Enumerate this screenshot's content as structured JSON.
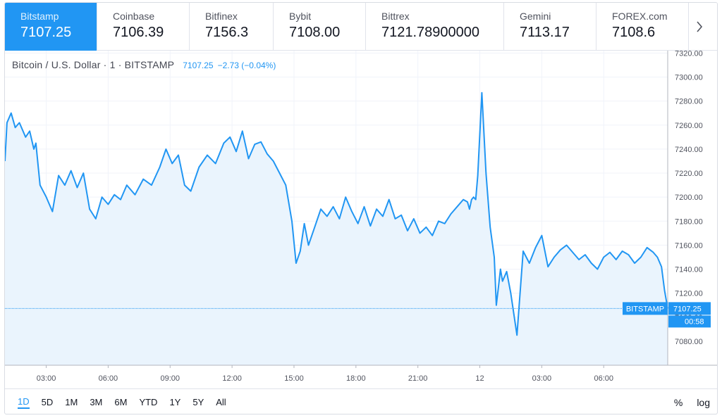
{
  "tabs": [
    {
      "name": "Bitstamp",
      "price": "7107.25",
      "active": true
    },
    {
      "name": "Coinbase",
      "price": "7106.39"
    },
    {
      "name": "Bitfinex",
      "price": "7156.3"
    },
    {
      "name": "Bybit",
      "price": "7108.00"
    },
    {
      "name": "Bittrex",
      "price": "7121.78900000"
    },
    {
      "name": "Gemini",
      "price": "7113.17"
    },
    {
      "name": "FOREX.com",
      "price": "7108.6"
    }
  ],
  "tab_next_icon": "chevron-right-icon",
  "legend": {
    "symbol": "Bitcoin / U.S. Dollar · 1 · BITSTAMP",
    "value": "7107.25",
    "change": "−2.73 (−0.04%)"
  },
  "colors": {
    "line": "#2196f3",
    "area": "#eaf4fd",
    "grid": "#f0f3fa",
    "accent": "#2196f3"
  },
  "chart_data": {
    "type": "area",
    "title": "",
    "xlabel": "",
    "ylabel": "",
    "x_ticks": [
      "03:00",
      "06:00",
      "09:00",
      "12:00",
      "15:00",
      "18:00",
      "21:00",
      "12",
      "03:00",
      "06:00"
    ],
    "y_ticks": [
      7080,
      7100,
      7120,
      7140,
      7160,
      7180,
      7200,
      7220,
      7240,
      7260,
      7280,
      7300,
      7320
    ],
    "ylim": [
      7060,
      7322
    ],
    "x_unit": "hours",
    "xlim": [
      1.0,
      33.1
    ],
    "grid": true,
    "last_price": 7107.25,
    "price_label_name": "BITSTAMP",
    "price_label_value": "7107.25",
    "countdown": "00:58",
    "series": [
      {
        "x": [
          1.0,
          1.1,
          1.3,
          1.5,
          1.7,
          2.0,
          2.2,
          2.4,
          2.5,
          2.7,
          3.0,
          3.3,
          3.6,
          3.9,
          4.2,
          4.5,
          4.8,
          5.1,
          5.4,
          5.7,
          6.0,
          6.3,
          6.6,
          6.9,
          7.3,
          7.7,
          8.1,
          8.5,
          8.8,
          9.1,
          9.4,
          9.7,
          10.0,
          10.4,
          10.8,
          11.2,
          11.6,
          11.9,
          12.2,
          12.5,
          12.8,
          13.1,
          13.4,
          13.7,
          14.0,
          14.3,
          14.6,
          14.9,
          15.1,
          15.3,
          15.5,
          15.7,
          16.0,
          16.3,
          16.6,
          16.9,
          17.2,
          17.5,
          17.8,
          18.1,
          18.4,
          18.7,
          19.0,
          19.3,
          19.6,
          19.9,
          20.2,
          20.5,
          20.8,
          21.1,
          21.4,
          21.7,
          22.0,
          22.3,
          22.6,
          22.9,
          23.2,
          23.4,
          23.5,
          23.6,
          23.7,
          23.8,
          23.9,
          24.1,
          24.3,
          24.5,
          24.7,
          24.8,
          24.9,
          25.0,
          25.1,
          25.3,
          25.5,
          25.8,
          26.1,
          26.4,
          26.7,
          27.0,
          27.3,
          27.6,
          27.9,
          28.2,
          28.5,
          28.8,
          29.1,
          29.4,
          29.7,
          30.0,
          30.3,
          30.6,
          30.9,
          31.2,
          31.5,
          31.8,
          32.1,
          32.4,
          32.6,
          32.8,
          32.95,
          33.1
        ],
        "y": [
          7230,
          7262,
          7270,
          7258,
          7262,
          7250,
          7255,
          7240,
          7245,
          7210,
          7200,
          7188,
          7218,
          7210,
          7222,
          7208,
          7220,
          7190,
          7182,
          7200,
          7194,
          7202,
          7198,
          7210,
          7202,
          7215,
          7210,
          7225,
          7240,
          7228,
          7235,
          7210,
          7205,
          7225,
          7235,
          7228,
          7245,
          7250,
          7238,
          7255,
          7232,
          7244,
          7246,
          7236,
          7230,
          7220,
          7210,
          7180,
          7145,
          7155,
          7178,
          7160,
          7175,
          7190,
          7184,
          7192,
          7182,
          7200,
          7188,
          7178,
          7192,
          7176,
          7190,
          7184,
          7198,
          7182,
          7185,
          7172,
          7182,
          7170,
          7175,
          7168,
          7180,
          7178,
          7186,
          7192,
          7198,
          7196,
          7190,
          7198,
          7200,
          7198,
          7218,
          7287,
          7220,
          7175,
          7150,
          7110,
          7125,
          7140,
          7130,
          7138,
          7120,
          7085,
          7155,
          7145,
          7158,
          7168,
          7142,
          7150,
          7156,
          7160,
          7154,
          7148,
          7152,
          7145,
          7140,
          7150,
          7154,
          7148,
          7155,
          7152,
          7145,
          7150,
          7158,
          7154,
          7150,
          7142,
          7122,
          7107.25
        ]
      }
    ]
  },
  "ranges": [
    {
      "label": "1D",
      "active": true
    },
    {
      "label": "5D"
    },
    {
      "label": "1M"
    },
    {
      "label": "3M"
    },
    {
      "label": "6M"
    },
    {
      "label": "YTD"
    },
    {
      "label": "1Y"
    },
    {
      "label": "5Y"
    },
    {
      "label": "All"
    }
  ],
  "options": {
    "percent": "%",
    "log": "log"
  }
}
